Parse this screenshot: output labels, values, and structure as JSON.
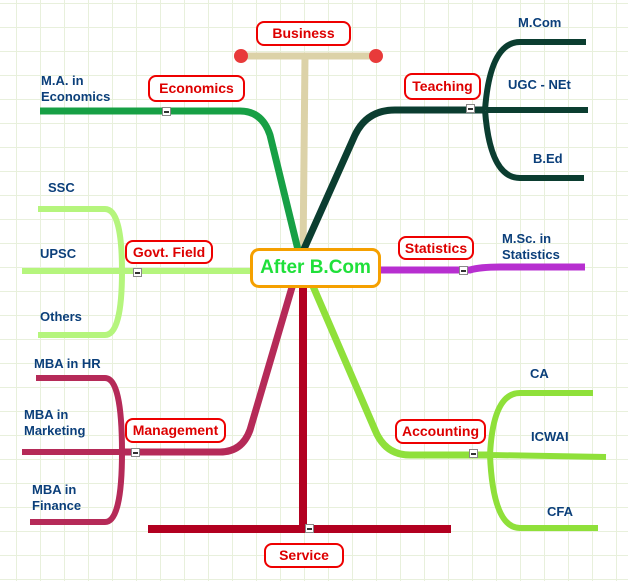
{
  "center": "After B.Com",
  "colors": {
    "business": "#dcd2a8",
    "economics": "#17a045",
    "teaching": "#0b3d30",
    "govt": "#b5f57d",
    "statistics": "#b72fd0",
    "management": "#b52a58",
    "service": "#b20020",
    "accounting": "#8fe03a"
  },
  "topics": {
    "business": {
      "label": "Business"
    },
    "economics": {
      "label": "Economics",
      "leaves": [
        "M.A. in\nEconomics"
      ]
    },
    "teaching": {
      "label": "Teaching",
      "leaves": [
        "M.Com",
        "UGC - NEt",
        "B.Ed"
      ]
    },
    "govt": {
      "label": "Govt. Field",
      "leaves": [
        "SSC",
        "UPSC",
        "Others"
      ]
    },
    "statistics": {
      "label": "Statistics",
      "leaves": [
        "M.Sc. in\nStatistics"
      ]
    },
    "management": {
      "label": "Management",
      "leaves": [
        "MBA in HR",
        "MBA in\nMarketing",
        "MBA in\nFinance"
      ]
    },
    "service": {
      "label": "Service"
    },
    "accounting": {
      "label": "Accounting",
      "leaves": [
        "CA",
        "ICWAI",
        "CFA"
      ]
    }
  }
}
